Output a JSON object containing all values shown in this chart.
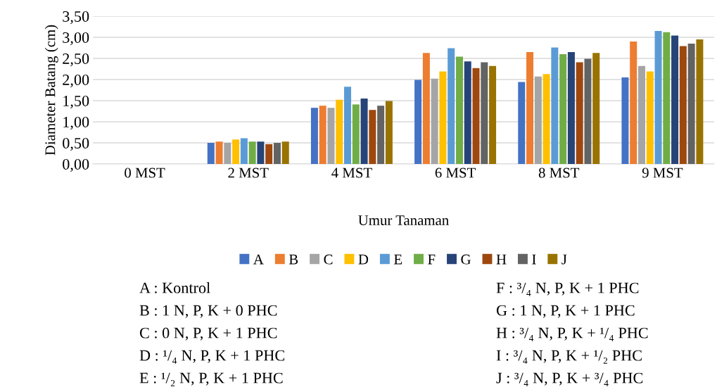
{
  "chart_data": {
    "type": "bar",
    "xlabel": "Umur Tanaman",
    "ylabel": "Diameter Batang (cm)",
    "categories": [
      "0 MST",
      "2 MST",
      "4 MST",
      "6 MST",
      "8 MST",
      "9 MST"
    ],
    "series": [
      {
        "name": "A",
        "color": "#4472c4",
        "values": [
          0,
          0.5,
          1.33,
          1.99,
          1.94,
          2.05
        ]
      },
      {
        "name": "B",
        "color": "#ed7d31",
        "values": [
          0,
          0.53,
          1.38,
          2.63,
          2.65,
          2.9
        ]
      },
      {
        "name": "C",
        "color": "#a5a5a5",
        "values": [
          0,
          0.5,
          1.33,
          2.02,
          2.07,
          2.32
        ]
      },
      {
        "name": "D",
        "color": "#ffc000",
        "values": [
          0,
          0.58,
          1.52,
          2.19,
          2.13,
          2.19
        ]
      },
      {
        "name": "E",
        "color": "#5b9bd5",
        "values": [
          0,
          0.61,
          1.83,
          2.74,
          2.76,
          3.15
        ]
      },
      {
        "name": "F",
        "color": "#70ad47",
        "values": [
          0,
          0.53,
          1.41,
          2.54,
          2.6,
          3.12
        ]
      },
      {
        "name": "G",
        "color": "#264478",
        "values": [
          0,
          0.53,
          1.55,
          2.43,
          2.65,
          3.04
        ]
      },
      {
        "name": "H",
        "color": "#9e480e",
        "values": [
          0,
          0.47,
          1.28,
          2.27,
          2.41,
          2.79
        ]
      },
      {
        "name": "I",
        "color": "#636363",
        "values": [
          0,
          0.5,
          1.38,
          2.41,
          2.49,
          2.85
        ]
      },
      {
        "name": "J",
        "color": "#997300",
        "values": [
          0,
          0.53,
          1.49,
          2.32,
          2.63,
          2.95
        ]
      }
    ],
    "ylim": [
      0,
      3.5
    ],
    "yticks": [
      {
        "value": 0,
        "label": "0,00"
      },
      {
        "value": 0.5,
        "label": "0,50"
      },
      {
        "value": 1,
        "label": "1,00"
      },
      {
        "value": 1.5,
        "label": "1,50"
      },
      {
        "value": 2,
        "label": "2,00"
      },
      {
        "value": 2.5,
        "label": "2,50"
      },
      {
        "value": 3,
        "label": "3,00"
      },
      {
        "value": 3.5,
        "label": "3,50"
      }
    ],
    "grid": "y",
    "legend": "bottom",
    "annotations": [
      "A : Kontrol",
      "B : 1 N, P, K + 0 PHC",
      "C : 0 N, P, K + 1 PHC",
      "D : ¹/₄ N, P, K + 1 PHC",
      "E : ¹/₂ N, P, K + 1 PHC",
      "F : ³/₄ N, P, K + 1 PHC",
      "G : 1 N, P, K + 1 PHC",
      "H : ³/₄ N, P, K + ¹/₄ PHC",
      "I : ³/₄ N, P, K + ¹/₂ PHC",
      "J : ³/₄ N, P, K + ³/₄ PHC"
    ]
  }
}
